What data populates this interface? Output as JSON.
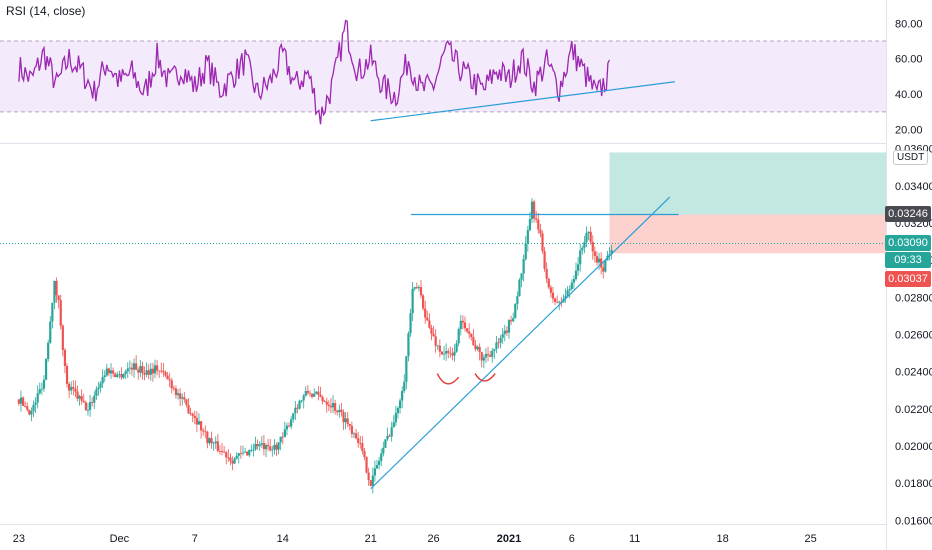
{
  "indicator": {
    "label": "RSI (14, close)"
  },
  "price_panel": {
    "unit": "USDT",
    "badges": {
      "resistance": "0.03246",
      "last_price": "0.03090",
      "countdown": "09:33",
      "stop_loss": "0.03037"
    }
  },
  "colors": {
    "up_candle": "#26a69a",
    "down_candle": "#ef5350",
    "rsi_line": "#9c27b0",
    "rsi_band": "#e9d9f7",
    "trendline": "#2a9fd6",
    "target_zone": "#b9e3dc",
    "stop_zone": "#fbc9c6"
  },
  "chart_data": [
    {
      "type": "line",
      "title": "RSI (14, close)",
      "ylim": [
        13,
        92
      ],
      "y_ticks": [
        "80.00",
        "60.00",
        "40.00",
        "20.00"
      ],
      "y_tick_values": [
        80,
        60,
        40,
        20
      ],
      "band": [
        30,
        70
      ],
      "trendline": {
        "from": [
          "Dec 23",
          25
        ],
        "to": [
          "Jan 13",
          47
        ]
      },
      "x_range": [
        "Nov 23",
        "Jan 9"
      ],
      "y_anchors": [
        [
          0,
          55
        ],
        [
          1,
          48
        ],
        [
          2,
          63
        ],
        [
          3,
          45
        ],
        [
          4,
          60
        ],
        [
          5,
          53
        ],
        [
          6,
          41
        ],
        [
          7,
          58
        ],
        [
          8,
          47
        ],
        [
          9,
          52
        ],
        [
          10,
          40
        ],
        [
          11,
          61
        ],
        [
          12,
          46
        ],
        [
          13,
          55
        ],
        [
          14,
          44
        ],
        [
          15,
          57
        ],
        [
          16,
          42
        ],
        [
          17,
          50
        ],
        [
          18,
          59
        ],
        [
          19,
          40
        ],
        [
          20,
          47
        ],
        [
          21,
          62
        ],
        [
          22,
          45
        ],
        [
          23,
          52
        ],
        [
          24,
          27
        ],
        [
          25,
          46
        ],
        [
          26,
          78
        ],
        [
          27,
          52
        ],
        [
          28,
          60
        ],
        [
          29,
          44
        ],
        [
          30,
          39
        ],
        [
          31,
          60
        ],
        [
          32,
          42
        ],
        [
          33,
          45
        ],
        [
          34,
          65
        ],
        [
          35,
          55
        ],
        [
          36,
          48
        ],
        [
          37,
          42
        ],
        [
          38,
          54
        ],
        [
          39,
          48
        ],
        [
          40,
          61
        ],
        [
          41,
          45
        ],
        [
          42,
          58
        ],
        [
          43,
          43
        ],
        [
          44,
          65
        ],
        [
          45,
          52
        ],
        [
          46,
          39
        ],
        [
          47,
          52
        ]
      ],
      "grid": false
    },
    {
      "type": "candlestick",
      "ylim": [
        0.0158,
        0.0362
      ],
      "y_ticks": [
        "0.03600",
        "0.03400",
        "0.03200",
        "0.03000",
        "0.02800",
        "0.02600",
        "0.02400",
        "0.02200",
        "0.02000",
        "0.01800",
        "0.01600"
      ],
      "y_tick_values": [
        0.036,
        0.034,
        0.032,
        0.03,
        0.028,
        0.026,
        0.024,
        0.022,
        0.02,
        0.018,
        0.016
      ],
      "x_ticks": [
        "23",
        "Dec",
        "7",
        "14",
        "21",
        "26",
        "2021",
        "6",
        "11",
        "18",
        "25"
      ],
      "x_tick_days": [
        0,
        8,
        14,
        21,
        28,
        33,
        39,
        44,
        49,
        56,
        63
      ],
      "x_range_days": [
        -1.5,
        69
      ],
      "last_price": 0.0309,
      "resistance": 0.03246,
      "trade": {
        "entry": 0.03246,
        "target": 0.0358,
        "stop": 0.03037,
        "from_day": 47,
        "to_day": 52
      },
      "trendline": {
        "from": [
          28.0,
          0.0177
        ],
        "to": [
          51.8,
          0.0334
        ]
      },
      "close_anchors": [
        [
          0,
          0.0225
        ],
        [
          1,
          0.0218
        ],
        [
          2,
          0.0236
        ],
        [
          2.8,
          0.0288
        ],
        [
          3.2,
          0.0276
        ],
        [
          3.8,
          0.0232
        ],
        [
          4.5,
          0.0228
        ],
        [
          5.5,
          0.0219
        ],
        [
          6.2,
          0.0231
        ],
        [
          7,
          0.0241
        ],
        [
          8,
          0.0238
        ],
        [
          9,
          0.0243
        ],
        [
          10,
          0.024
        ],
        [
          11,
          0.0242
        ],
        [
          12,
          0.0235
        ],
        [
          13,
          0.0224
        ],
        [
          14,
          0.0216
        ],
        [
          15,
          0.0204
        ],
        [
          16,
          0.0198
        ],
        [
          17,
          0.0193
        ],
        [
          18,
          0.0196
        ],
        [
          19,
          0.0201
        ],
        [
          20,
          0.0197
        ],
        [
          21,
          0.0204
        ],
        [
          22,
          0.0221
        ],
        [
          23,
          0.0229
        ],
        [
          24,
          0.0226
        ],
        [
          25,
          0.0222
        ],
        [
          26,
          0.0214
        ],
        [
          27,
          0.0204
        ],
        [
          28,
          0.018
        ],
        [
          29,
          0.0199
        ],
        [
          30,
          0.0216
        ],
        [
          30.7,
          0.0238
        ],
        [
          31.3,
          0.0282
        ],
        [
          31.8,
          0.0286
        ],
        [
          32.6,
          0.0264
        ],
        [
          33.5,
          0.0251
        ],
        [
          34.5,
          0.0248
        ],
        [
          35.3,
          0.0269
        ],
        [
          36,
          0.0258
        ],
        [
          36.8,
          0.0247
        ],
        [
          37.8,
          0.0252
        ],
        [
          38.5,
          0.0258
        ],
        [
          39.3,
          0.027
        ],
        [
          40.2,
          0.03
        ],
        [
          40.8,
          0.033
        ],
        [
          41.5,
          0.0312
        ],
        [
          42.2,
          0.0282
        ],
        [
          43,
          0.0276
        ],
        [
          43.8,
          0.0284
        ],
        [
          44.5,
          0.0299
        ],
        [
          45.2,
          0.0316
        ],
        [
          45.8,
          0.0302
        ],
        [
          46.5,
          0.0296
        ],
        [
          47,
          0.0305
        ],
        [
          47.3,
          0.0309
        ]
      ],
      "annotations": [
        "left-shoulder-arc",
        "right-shoulder-arc"
      ],
      "grid": false
    }
  ]
}
